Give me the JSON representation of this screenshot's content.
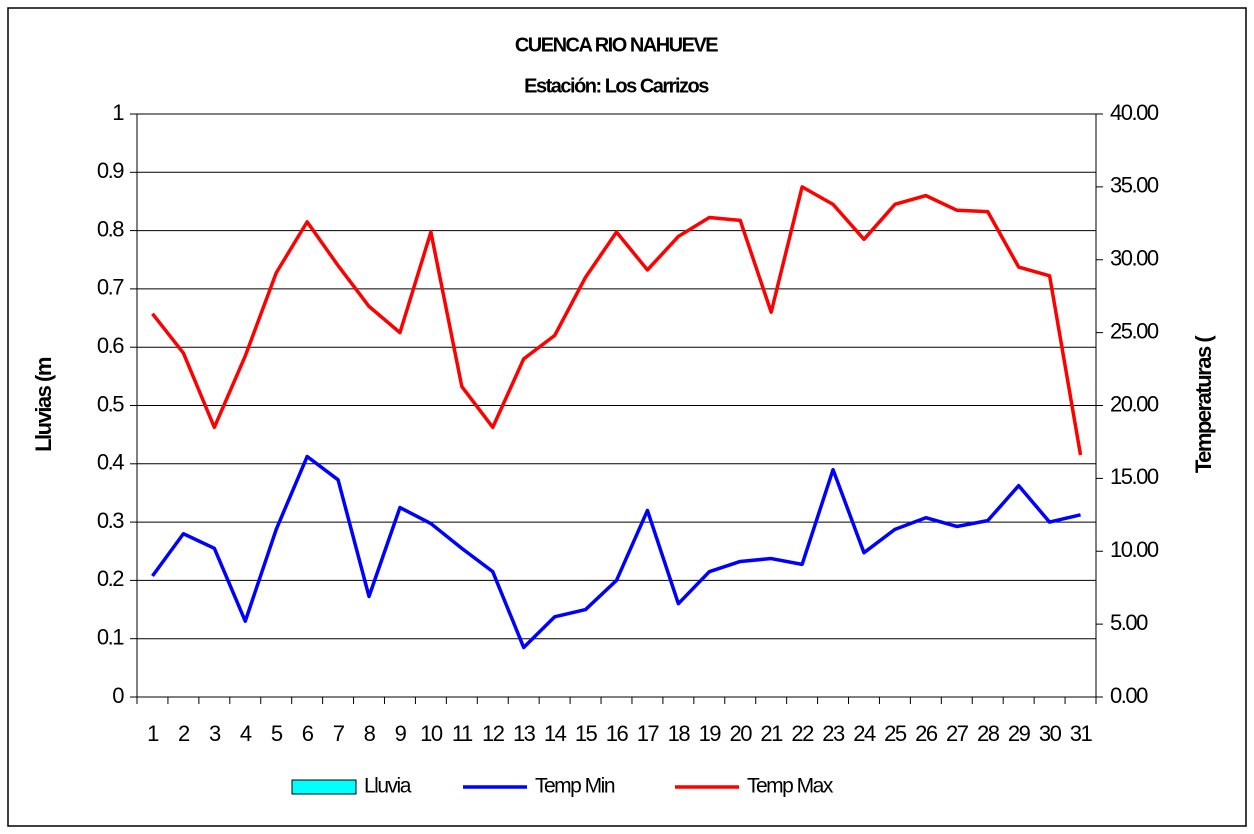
{
  "chart_data": {
    "type": "line",
    "title": "CUENCA RIO NAHUEVE",
    "subtitle": "Estación: Los Carrizos",
    "ylabel": "Lluvias (m",
    "y2label": "Temperaturas (",
    "categories": [
      "1",
      "2",
      "3",
      "4",
      "5",
      "6",
      "7",
      "8",
      "9",
      "10",
      "11",
      "12",
      "13",
      "14",
      "15",
      "16",
      "17",
      "18",
      "19",
      "20",
      "21",
      "22",
      "23",
      "24",
      "25",
      "26",
      "27",
      "28",
      "29",
      "30",
      "31"
    ],
    "ylim": [
      0,
      1
    ],
    "yticks": [
      0,
      0.1,
      0.2,
      0.3,
      0.4,
      0.5,
      0.6,
      0.7,
      0.8,
      0.9,
      1
    ],
    "y2lim": [
      0,
      40
    ],
    "y2ticks": [
      {
        "value": 0,
        "label": "0.00"
      },
      {
        "value": 5,
        "label": "5.00"
      },
      {
        "value": 10,
        "label": "10.00"
      },
      {
        "value": 15,
        "label": "15.00"
      },
      {
        "value": 20,
        "label": "20.00"
      },
      {
        "value": 25,
        "label": "25.00"
      },
      {
        "value": 30,
        "label": "30.00"
      },
      {
        "value": 35,
        "label": "35.00"
      },
      {
        "value": 40,
        "label": "40.00"
      }
    ],
    "grid": true,
    "legend": "bottom",
    "series": [
      {
        "name": "Lluvia",
        "type": "bar",
        "color": "#00ffff",
        "values": [
          0,
          0,
          0,
          0,
          0,
          0,
          0,
          0,
          0,
          0,
          0,
          0,
          0,
          0,
          0,
          0,
          0,
          0,
          0,
          0,
          0,
          0,
          0,
          0,
          0,
          0,
          0,
          0,
          0,
          0,
          0
        ]
      },
      {
        "name": "Temp Min",
        "type": "line",
        "axis": "y2",
        "color": "#0000ff",
        "values": [
          8.3,
          11.2,
          10.2,
          5.2,
          11.5,
          16.5,
          14.9,
          6.9,
          13.0,
          11.9,
          10.2,
          8.6,
          3.4,
          5.5,
          6.0,
          8.0,
          12.8,
          6.4,
          8.6,
          9.3,
          9.5,
          9.1,
          15.6,
          9.9,
          11.5,
          12.3,
          11.7,
          12.1,
          14.5,
          12.0,
          12.5
        ]
      },
      {
        "name": "Temp Max",
        "type": "line",
        "axis": "y2",
        "color": "#ff0000",
        "values": [
          26.3,
          23.6,
          18.5,
          23.4,
          29.1,
          32.6,
          29.6,
          26.8,
          25.0,
          31.9,
          21.3,
          18.5,
          23.2,
          24.8,
          28.8,
          31.9,
          29.3,
          31.6,
          32.9,
          32.7,
          26.4,
          35.0,
          33.8,
          31.4,
          33.8,
          34.4,
          33.4,
          33.3,
          29.5,
          28.9,
          16.6
        ]
      }
    ]
  }
}
